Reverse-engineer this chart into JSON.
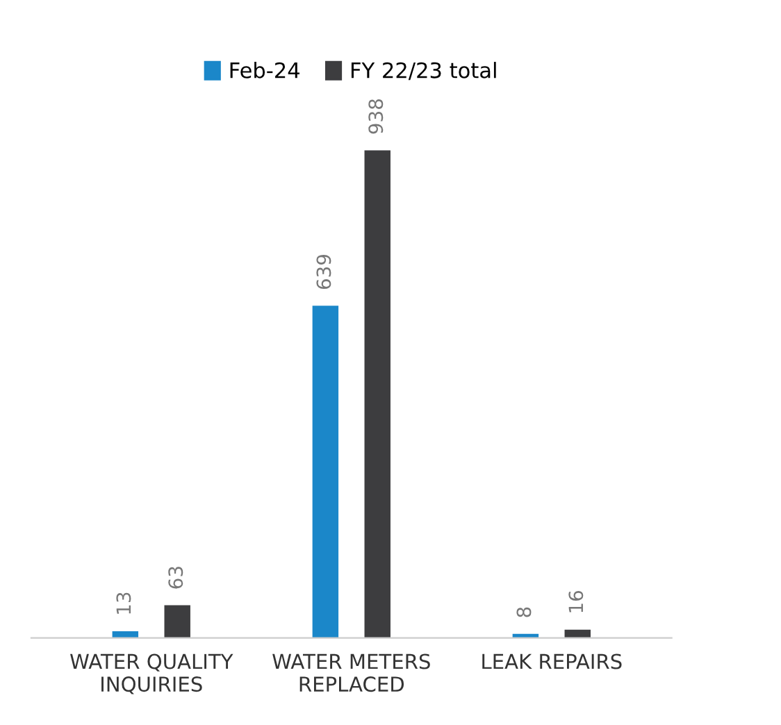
{
  "chart_data": {
    "type": "bar",
    "categories": [
      "WATER QUALITY\nINQUIRIES",
      "WATER METERS\nREPLACED",
      "LEAK REPAIRS"
    ],
    "series": [
      {
        "name": "Feb-24",
        "color": "#1b87c9",
        "values": [
          13,
          639,
          8
        ]
      },
      {
        "name": "FY 22/23 total",
        "color": "#3d3d3f",
        "values": [
          63,
          938,
          16
        ]
      }
    ],
    "data_labels": true,
    "legend": "top",
    "grid": false
  }
}
